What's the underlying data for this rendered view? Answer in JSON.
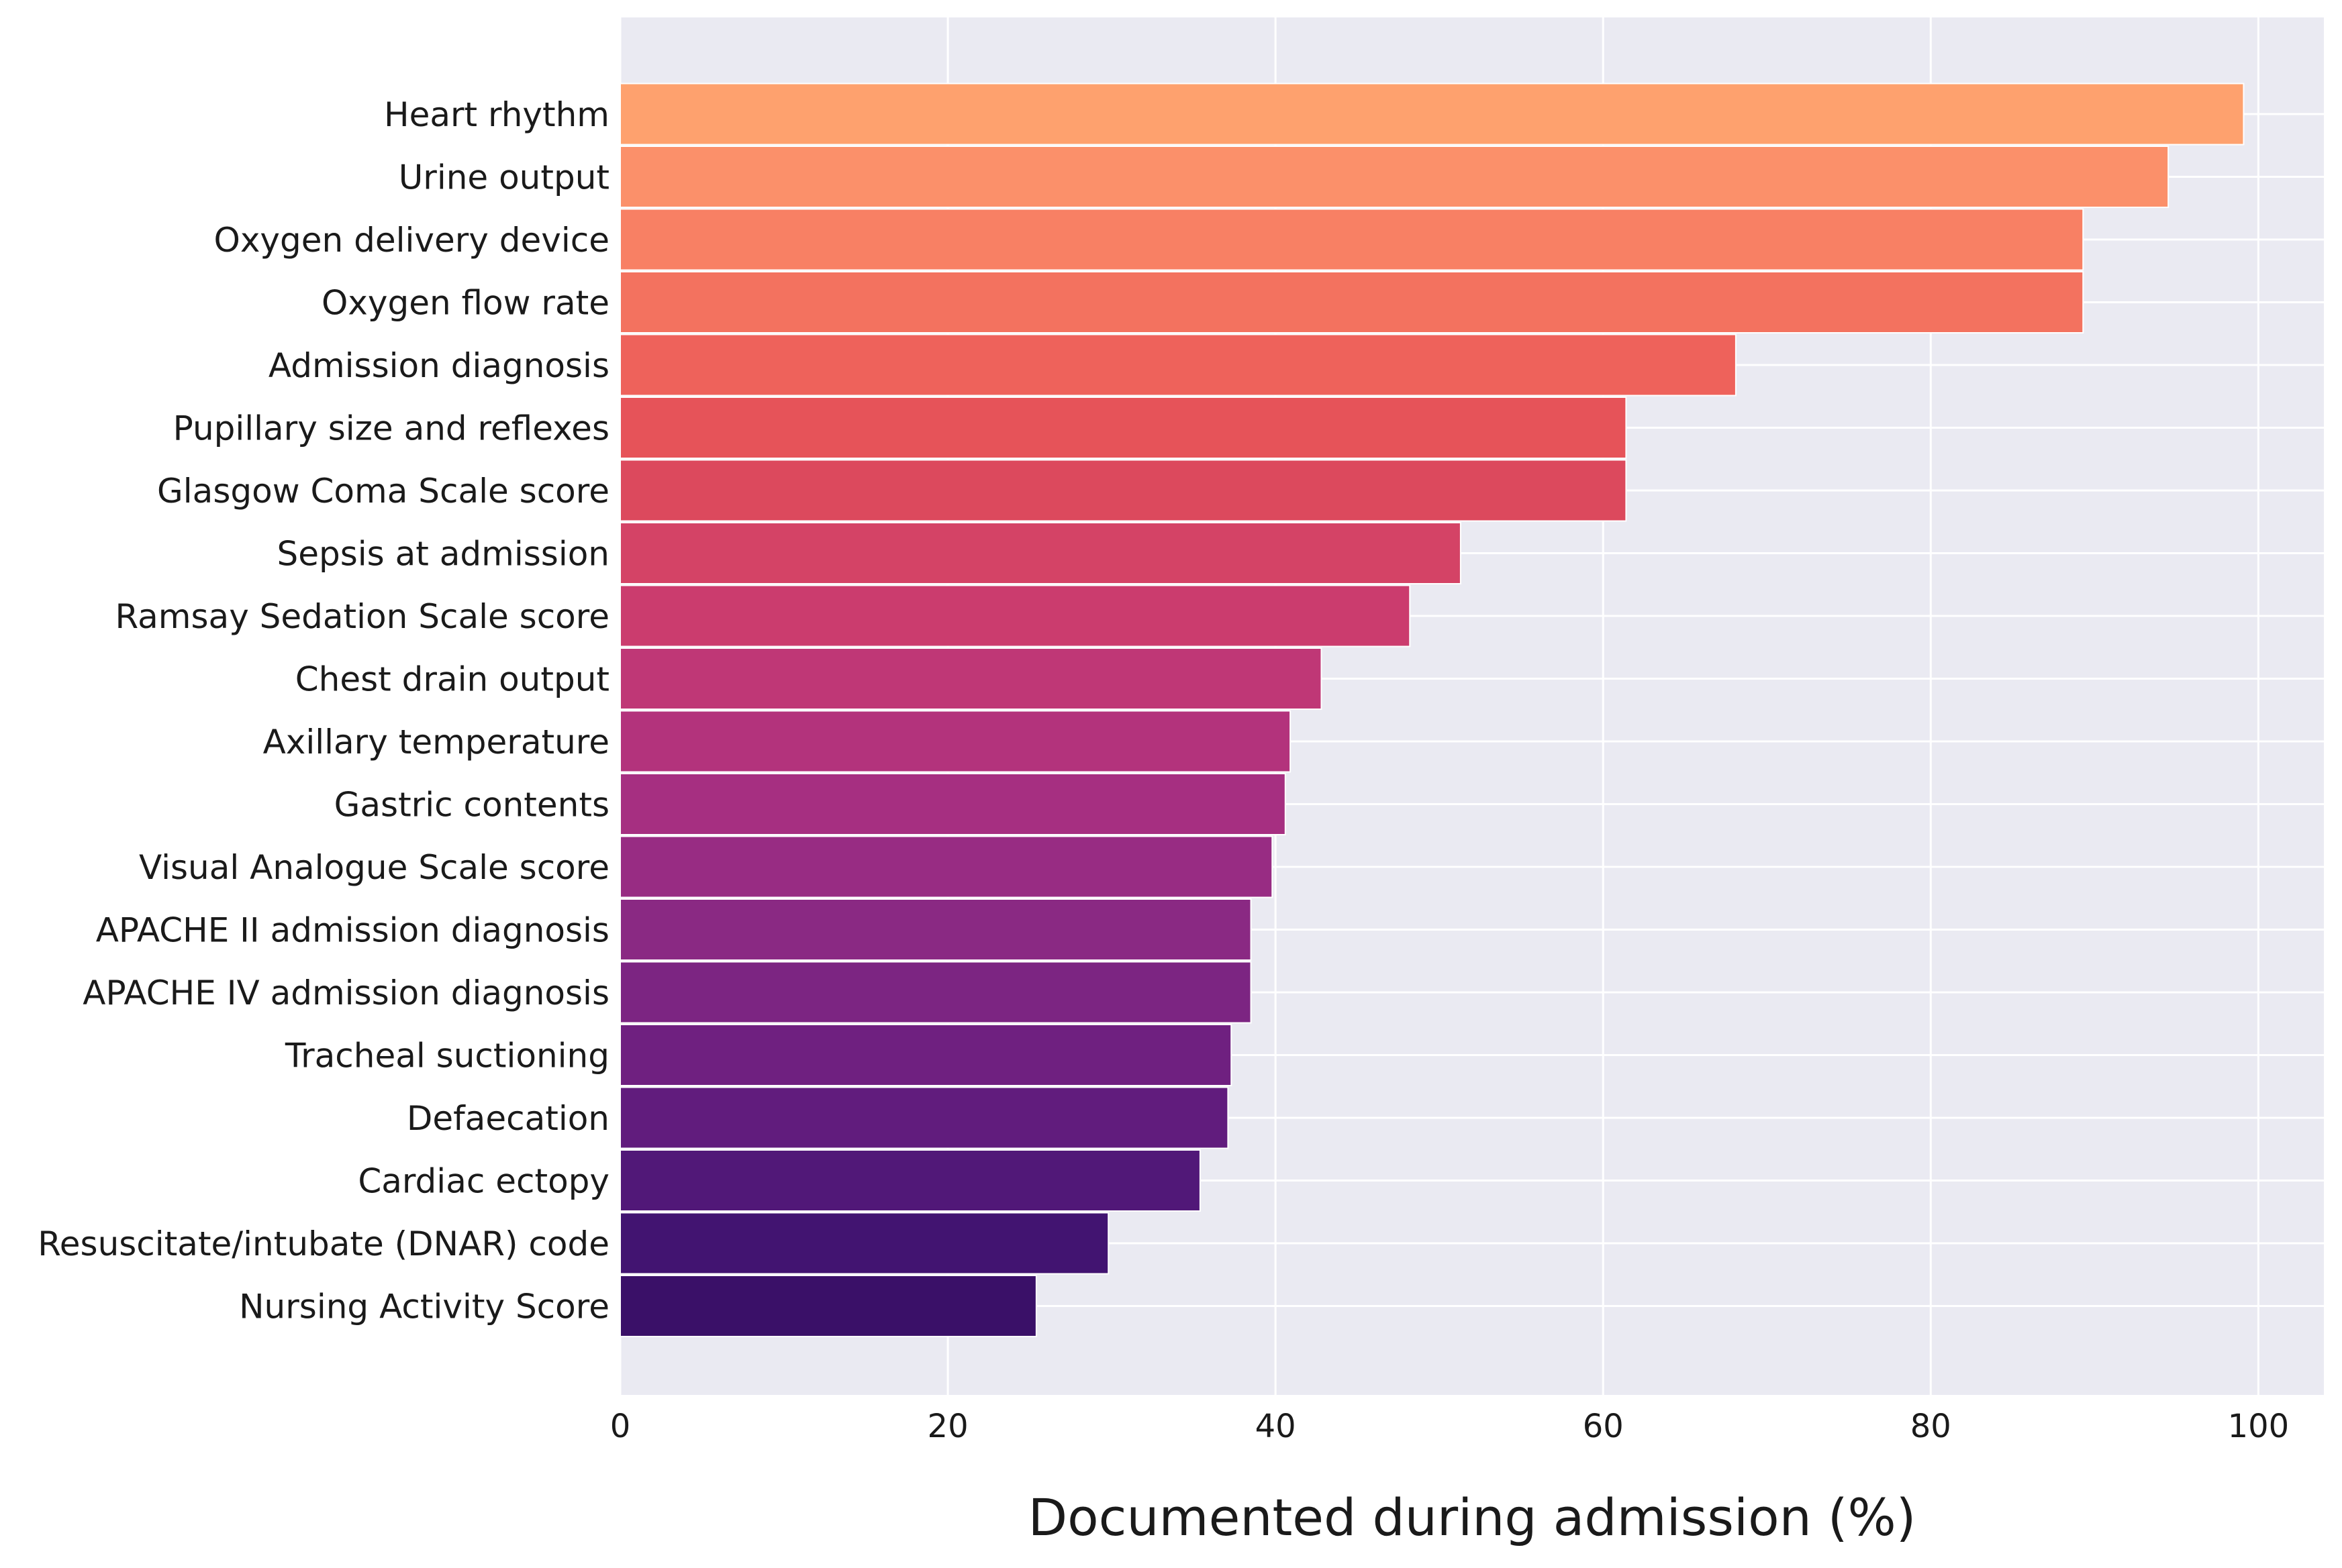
{
  "chart_data": {
    "type": "bar",
    "orientation": "horizontal",
    "title": "",
    "xlabel": "Documented during admission (%)",
    "ylabel": "",
    "xlim": [
      0,
      104
    ],
    "xticks": [
      0,
      20,
      40,
      60,
      80,
      100
    ],
    "grid": true,
    "background": "#eaeaf2",
    "colormap": "magma",
    "categories": [
      "Heart rhythm",
      "Urine output",
      "Oxygen delivery device",
      "Oxygen flow rate",
      "Admission diagnosis",
      "Pupillary size and reflexes",
      "Glasgow Coma Scale score",
      "Sepsis at admission",
      "Ramsay Sedation Scale score",
      "Chest drain output",
      "Axillary temperature",
      "Gastric contents",
      "Visual Analogue Scale score",
      "APACHE II admission diagnosis",
      "APACHE IV admission diagnosis",
      "Tracheal suctioning",
      "Defaecation",
      "Cardiac ectopy",
      "Resuscitate/intubate (DNAR) code",
      "Nursing Activity Score"
    ],
    "values": [
      99.1,
      94.5,
      89.3,
      89.3,
      68.1,
      61.4,
      61.4,
      51.3,
      48.2,
      42.8,
      40.9,
      40.6,
      39.8,
      38.5,
      38.5,
      37.3,
      37.1,
      35.4,
      29.8,
      25.4
    ],
    "colors": [
      "#fea16e",
      "#fb906a",
      "#f88064",
      "#f3725f",
      "#ee625b",
      "#e65359",
      "#dc495d",
      "#d44366",
      "#cb3c6e",
      "#bf3776",
      "#b3337c",
      "#a62f81",
      "#982c83",
      "#8a2983",
      "#7c2582",
      "#6f2080",
      "#611c7d",
      "#511878",
      "#421471",
      "#3a1068"
    ]
  }
}
